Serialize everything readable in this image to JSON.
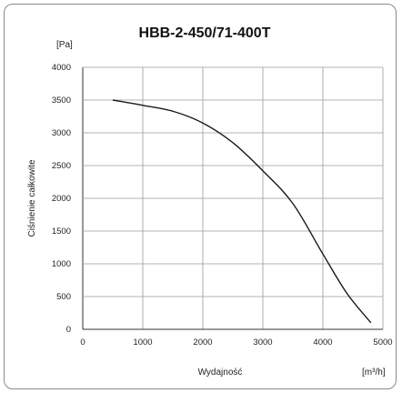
{
  "chart_data": {
    "type": "line",
    "title": "HBB-2-450/71-400T",
    "ylabel": "Ciśnienie całkowite",
    "xlabel": "Wydajność",
    "y_unit": "[Pa]",
    "x_unit": "[m³/h]",
    "xlim": [
      0,
      5000
    ],
    "ylim": [
      0,
      4000
    ],
    "x_ticks": [
      "0",
      "1000",
      "2000",
      "3000",
      "4000",
      "5000"
    ],
    "y_ticks": [
      "0",
      "500",
      "1000",
      "1500",
      "2000",
      "2500",
      "3000",
      "3500",
      "4000"
    ],
    "grid": true,
    "series": [
      {
        "x": [
          500,
          1000,
          1500,
          2000,
          2500,
          3000,
          3500,
          4000,
          4400,
          4800
        ],
        "y": [
          3500,
          3420,
          3330,
          3150,
          2850,
          2420,
          1920,
          1150,
          550,
          100
        ]
      }
    ]
  }
}
